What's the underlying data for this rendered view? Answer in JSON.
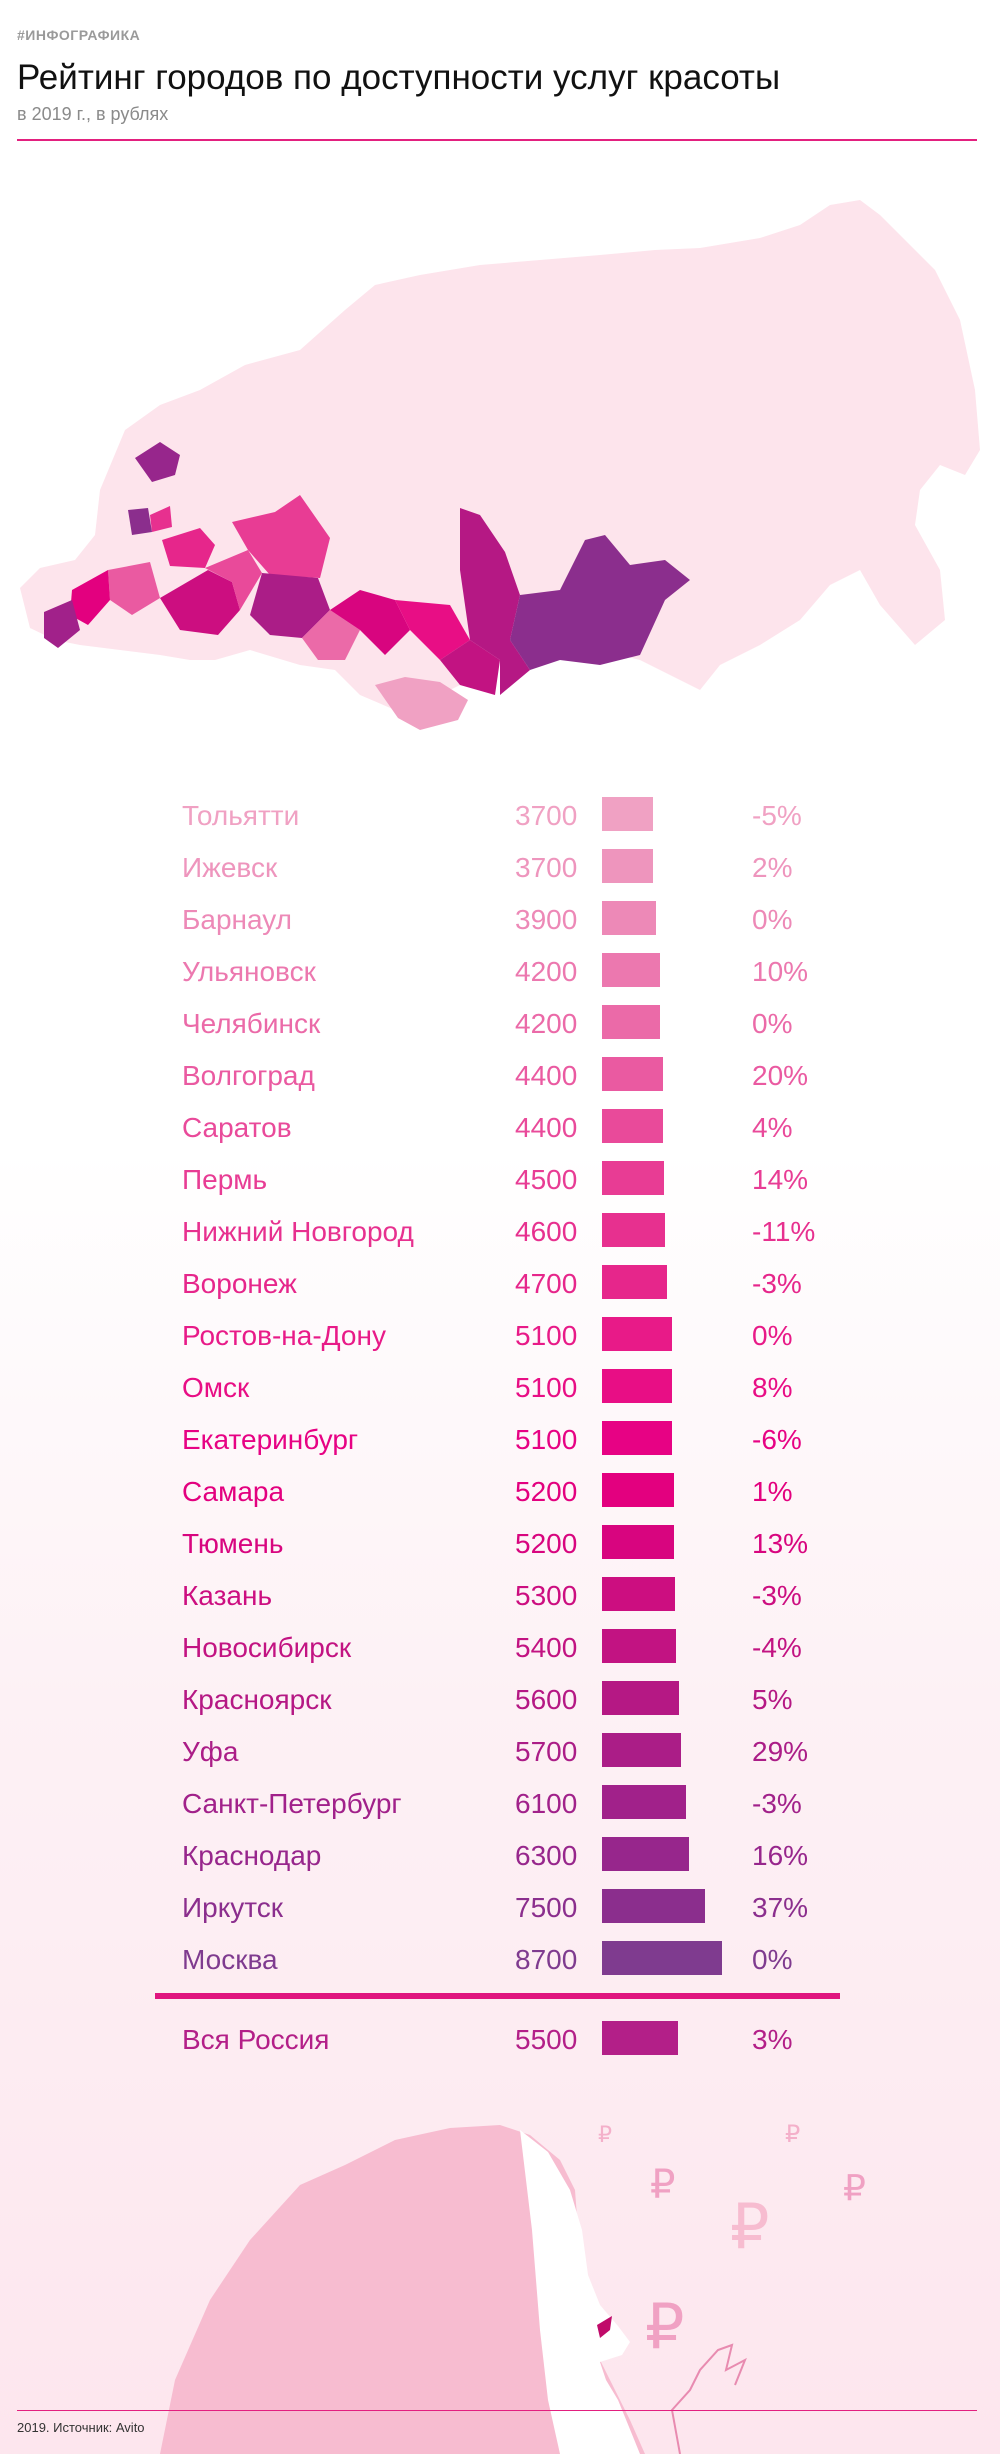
{
  "header": {
    "tag": "#ИНФОГРАФИКА",
    "title": "Рейтинг городов по доступности услуг красоты",
    "subtitle": "в 2019 г., в рублях"
  },
  "colors": {
    "accent": "#e3207f",
    "map_base": "#fde4ec",
    "text_light": "#ee9ec0",
    "text_mid": "#e8339a",
    "text_dark": "#7f3b8f"
  },
  "chart_data": {
    "type": "bar",
    "title": "Рейтинг городов по доступности услуг красоты",
    "subtitle": "в 2019 г., в рублях",
    "categories": [
      "Тольятти",
      "Ижевск",
      "Барнаул",
      "Ульяновск",
      "Челябинск",
      "Волгоград",
      "Саратов",
      "Пермь",
      "Нижний Новгород",
      "Воронеж",
      "Ростов-на-Дону",
      "Омск",
      "Екатеринбург",
      "Самара",
      "Тюмень",
      "Казань",
      "Новосибирск",
      "Красноярск",
      "Уфа",
      "Санкт-Петербург",
      "Краснодар",
      "Иркутск",
      "Москва"
    ],
    "values": [
      3700,
      3700,
      3900,
      4200,
      4200,
      4400,
      4400,
      4500,
      4600,
      4700,
      5100,
      5100,
      5100,
      5200,
      5200,
      5300,
      5400,
      5600,
      5700,
      6100,
      6300,
      7500,
      8700
    ],
    "value_labels": [
      "3700",
      "3700",
      "3900",
      "4200",
      "4200",
      "4400",
      "4400",
      "4500",
      "4600",
      "4700",
      "5100",
      "5100",
      "5100",
      "5200",
      "5200",
      "5300",
      "5400",
      "5600",
      "5700",
      "6100",
      "6300",
      "7500",
      "8700"
    ],
    "changes": [
      "-5%",
      "2%",
      "0%",
      "10%",
      "0%",
      "20%",
      "4%",
      "14%",
      "-11%",
      "-3%",
      "0%",
      "8%",
      "-6%",
      "1%",
      "13%",
      "-3%",
      "-4%",
      "5%",
      "29%",
      "-3%",
      "16%",
      "37%",
      "0%"
    ],
    "colors": [
      "#f0a1c3",
      "#ee95bd",
      "#ed89b7",
      "#ec78af",
      "#eb6aa8",
      "#ea5aa1",
      "#e94a9a",
      "#e83c94",
      "#e7308f",
      "#e6268b",
      "#e81a88",
      "#e80e85",
      "#e70284",
      "#e3007f",
      "#d8057f",
      "#cc0e80",
      "#c21382",
      "#b51884",
      "#ab1d87",
      "#a1218a",
      "#97268c",
      "#8b2e8d",
      "#7f3b8f"
    ],
    "total": {
      "label": "Вся Россия",
      "value": 5500,
      "value_label": "5500",
      "change": "3%",
      "color": "#b31f88"
    }
  },
  "footer": {
    "source": "2019. Источник: Avito"
  }
}
